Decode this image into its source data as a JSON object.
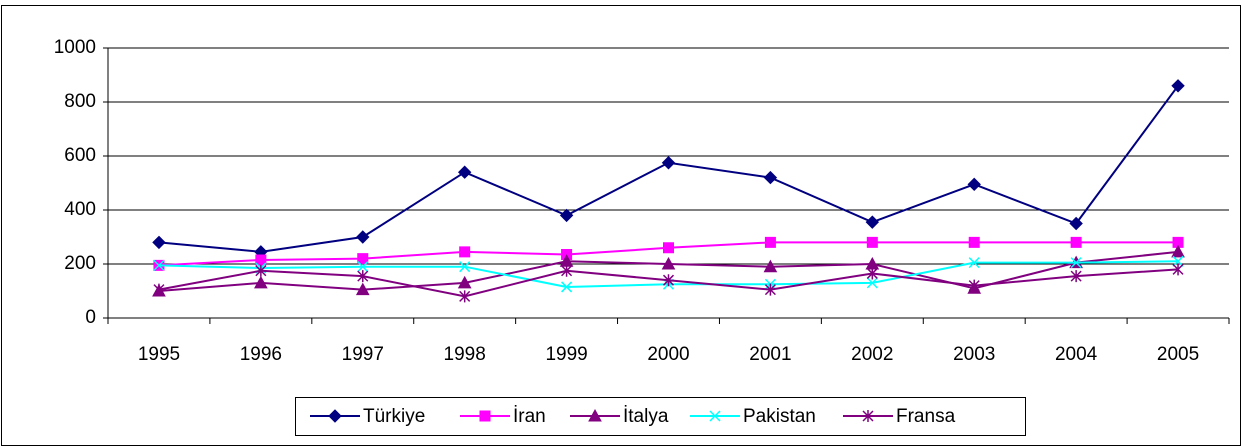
{
  "chart_data": {
    "type": "line",
    "categories": [
      "1995",
      "1996",
      "1997",
      "1998",
      "1999",
      "2000",
      "2001",
      "2002",
      "2003",
      "2004",
      "2005"
    ],
    "series": [
      {
        "name": "Türkiye",
        "color": "#000080",
        "marker": "diamond",
        "values": [
          280,
          245,
          300,
          540,
          380,
          575,
          520,
          355,
          495,
          350,
          860
        ]
      },
      {
        "name": "İran",
        "color": "#ff00ff",
        "marker": "square",
        "values": [
          195,
          215,
          220,
          245,
          235,
          260,
          280,
          280,
          280,
          280,
          280
        ]
      },
      {
        "name": "İtalya",
        "color": "#800080",
        "marker": "triangle",
        "values": [
          100,
          130,
          105,
          130,
          210,
          200,
          190,
          200,
          110,
          205,
          245
        ]
      },
      {
        "name": "Pakistan",
        "color": "#00ffff",
        "marker": "x",
        "values": [
          195,
          185,
          190,
          190,
          115,
          125,
          125,
          130,
          205,
          205,
          210
        ]
      },
      {
        "name": "Fransa",
        "color": "#800080",
        "marker": "asterisk",
        "values": [
          105,
          175,
          155,
          80,
          175,
          140,
          105,
          165,
          120,
          155,
          180
        ]
      }
    ],
    "ylim": [
      0,
      1000
    ],
    "yticks": [
      0,
      200,
      400,
      600,
      800,
      1000
    ],
    "grid": true,
    "legend": "bottom"
  }
}
